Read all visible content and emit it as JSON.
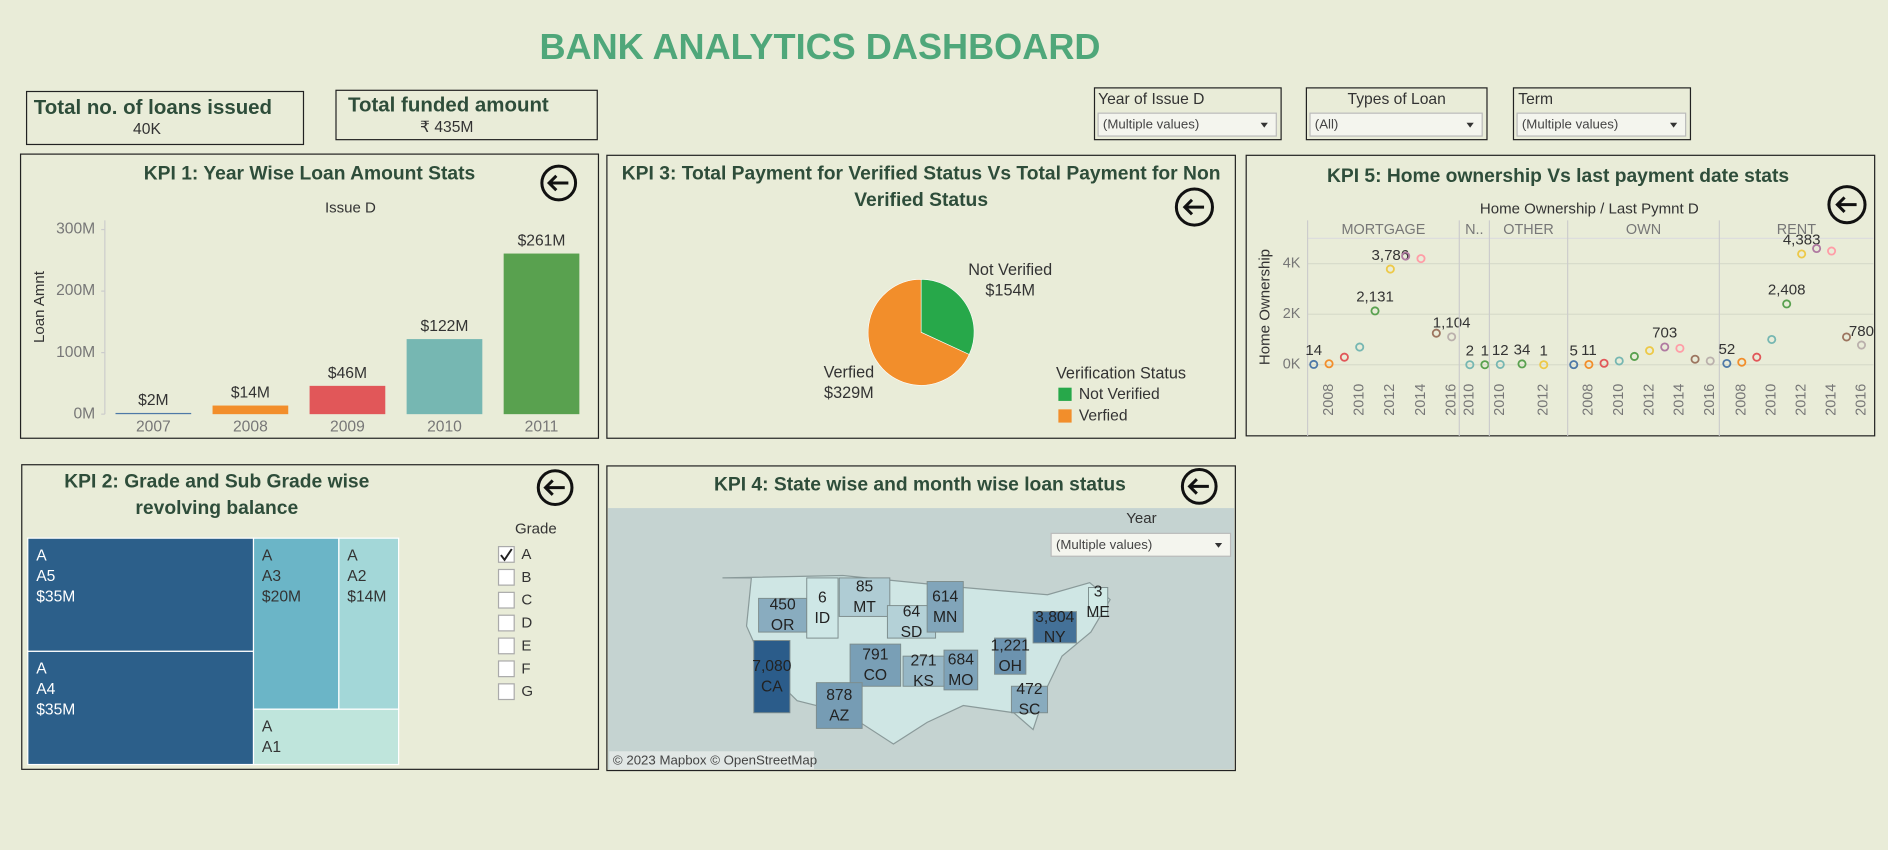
{
  "title": "BANK ANALYTICS DASHBOARD",
  "cards": [
    {
      "label": "Total no. of loans issued",
      "value": "40K"
    },
    {
      "label": "Total funded amount",
      "value": "₹ 435M"
    }
  ],
  "filters": [
    {
      "label": "Year of Issue D",
      "value": "(Multiple values)"
    },
    {
      "label": "Types of Loan",
      "value": "(All)"
    },
    {
      "label": "Term",
      "value": "(Multiple values)"
    }
  ],
  "attribution": "© 2023 Mapbox © OpenStreetMap",
  "chart_data": [
    {
      "type": "bar",
      "title": "KPI 1: Year Wise Loan Amount Stats",
      "x_label": "Issue D",
      "y_label": "Loan Amnt",
      "categories": [
        "2007",
        "2008",
        "2009",
        "2010",
        "2011"
      ],
      "values": [
        2,
        14,
        46,
        122,
        261
      ],
      "value_labels": [
        "$2M",
        "$14M",
        "$46M",
        "$122M",
        "$261M"
      ],
      "colors": [
        "#4e79a7",
        "#f28e2b",
        "#e15759",
        "#76b7b2",
        "#59a14f"
      ],
      "ylim": [
        0,
        315
      ],
      "yticks": [
        {
          "value": 0,
          "label": "0M"
        },
        {
          "value": 100,
          "label": "100M"
        },
        {
          "value": 200,
          "label": "200M"
        },
        {
          "value": 300,
          "label": "300M"
        }
      ],
      "grid": false
    },
    {
      "type": "pie",
      "title": "KPI 3: Total Payment for Verified Status Vs Total Payment for Non Verified Status",
      "categories": [
        "Not Verified",
        "Verfied"
      ],
      "values": [
        154,
        329
      ],
      "value_labels": [
        "$154M",
        "$329M"
      ],
      "colors": [
        "#27a84a",
        "#f28e2b"
      ],
      "legend_title": "Verification Status",
      "legend": "right"
    },
    {
      "type": "scatter",
      "title": "KPI 5: Home ownership Vs last payment date stats",
      "x_label": "Home Ownership  /  Last Pymnt D",
      "y_label": "Home Ownership",
      "ylim": [
        -430,
        5000
      ],
      "yticks": [
        {
          "value": 0,
          "label": "0K"
        },
        {
          "value": 2000,
          "label": "2K"
        },
        {
          "value": 4000,
          "label": "4K"
        }
      ],
      "grid": true,
      "panels": [
        {
          "name": "MORTGAGE",
          "xlim": [
            2006.6,
            2016.5
          ],
          "xticks": [
            2008,
            2010,
            2012,
            2014,
            2016
          ],
          "x": [
            2007,
            2008,
            2009,
            2010,
            2011,
            2012,
            2013,
            2014,
            2015,
            2016
          ],
          "values": [
            14,
            40,
            300,
            700,
            2131,
            3786,
            4300,
            4200,
            1250,
            1104
          ],
          "value_labels": [
            "14",
            null,
            null,
            null,
            "2,131",
            "3,786",
            null,
            null,
            null,
            "1,104"
          ],
          "colors": [
            "#4e79a7",
            "#f28e2b",
            "#e15759",
            "#76b7b2",
            "#59a14f",
            "#edc948",
            "#b07aa1",
            "#ff9da7",
            "#9c755f",
            "#bab0ac"
          ]
        },
        {
          "name": "N..",
          "xlim": [
            2009.3,
            2011.3
          ],
          "xticks": [
            2010
          ],
          "x": [
            2010,
            2011
          ],
          "values": [
            2,
            1
          ],
          "value_labels": [
            "2",
            "1"
          ],
          "colors": [
            "#76b7b2",
            "#59a14f"
          ]
        },
        {
          "name": "OTHER",
          "xlim": [
            2009.5,
            2013.1
          ],
          "xticks": [
            2010,
            2012
          ],
          "x": [
            2010,
            2011,
            2012
          ],
          "values": [
            12,
            34,
            1
          ],
          "value_labels": [
            "12",
            "34",
            "1"
          ],
          "colors": [
            "#76b7b2",
            "#59a14f",
            "#edc948"
          ]
        },
        {
          "name": "OWN",
          "xlim": [
            2006.6,
            2016.6
          ],
          "xticks": [
            2008,
            2010,
            2012,
            2014,
            2016
          ],
          "x": [
            2007,
            2008,
            2009,
            2010,
            2011,
            2012,
            2013,
            2014,
            2015,
            2016
          ],
          "values": [
            5,
            11,
            60,
            150,
            330,
            560,
            703,
            650,
            220,
            150
          ],
          "value_labels": [
            "5",
            "11",
            null,
            null,
            null,
            null,
            "703",
            null,
            null,
            null
          ],
          "colors": [
            "#4e79a7",
            "#f28e2b",
            "#e15759",
            "#76b7b2",
            "#59a14f",
            "#edc948",
            "#b07aa1",
            "#ff9da7",
            "#9c755f",
            "#bab0ac"
          ]
        },
        {
          "name": "RENT",
          "xlim": [
            2006.5,
            2016.8
          ],
          "xticks": [
            2008,
            2010,
            2012,
            2014,
            2016
          ],
          "x": [
            2007,
            2008,
            2009,
            2010,
            2011,
            2012,
            2013,
            2014,
            2015,
            2016
          ],
          "values": [
            52,
            100,
            300,
            1000,
            2408,
            4383,
            4600,
            4500,
            1100,
            780
          ],
          "value_labels": [
            "52",
            null,
            null,
            null,
            "2,408",
            "4,383",
            null,
            null,
            null,
            "780"
          ],
          "colors": [
            "#4e79a7",
            "#f28e2b",
            "#e15759",
            "#76b7b2",
            "#59a14f",
            "#edc948",
            "#b07aa1",
            "#ff9da7",
            "#9c755f",
            "#bab0ac"
          ]
        }
      ]
    },
    {
      "type": "treemap",
      "title": "KPI 2: Grade and Sub Grade wise revolving balance",
      "group": "A",
      "categories": [
        "A5",
        "A4",
        "A3",
        "A2",
        "A1"
      ],
      "values": [
        35,
        35,
        20,
        14,
        11
      ],
      "value_labels": [
        "$35M",
        "$35M",
        "$20M",
        "$14M",
        null
      ],
      "colors": [
        "#2c5f8a",
        "#2c5f8a",
        "#6bb5c7",
        "#a3d7d8",
        "#bfe5dc"
      ],
      "filter": {
        "title": "Grade",
        "options": [
          {
            "label": "A",
            "checked": true
          },
          {
            "label": "B",
            "checked": false
          },
          {
            "label": "C",
            "checked": false
          },
          {
            "label": "D",
            "checked": false
          },
          {
            "label": "E",
            "checked": false
          },
          {
            "label": "F",
            "checked": false
          },
          {
            "label": "G",
            "checked": false
          }
        ]
      }
    },
    {
      "type": "map",
      "title": "KPI 4: State wise and month wise loan status",
      "categories": [
        "OR",
        "ID",
        "MT",
        "SD",
        "MN",
        "CA",
        "CO",
        "KS",
        "MO",
        "AZ",
        "OH",
        "NY",
        "ME",
        "SC"
      ],
      "values": [
        450,
        6,
        85,
        64,
        614,
        7080,
        791,
        271,
        684,
        878,
        1221,
        3804,
        3,
        472
      ],
      "value_labels": [
        "450",
        "6",
        "85",
        "64",
        "614",
        "7,080",
        "791",
        "271",
        "684",
        "878",
        "1,221",
        "3,804",
        "3",
        "472"
      ],
      "colors": [
        "#d4ece9",
        "#2b5c8a"
      ],
      "filter": {
        "title": "Year",
        "value": "(Multiple values)"
      }
    }
  ]
}
